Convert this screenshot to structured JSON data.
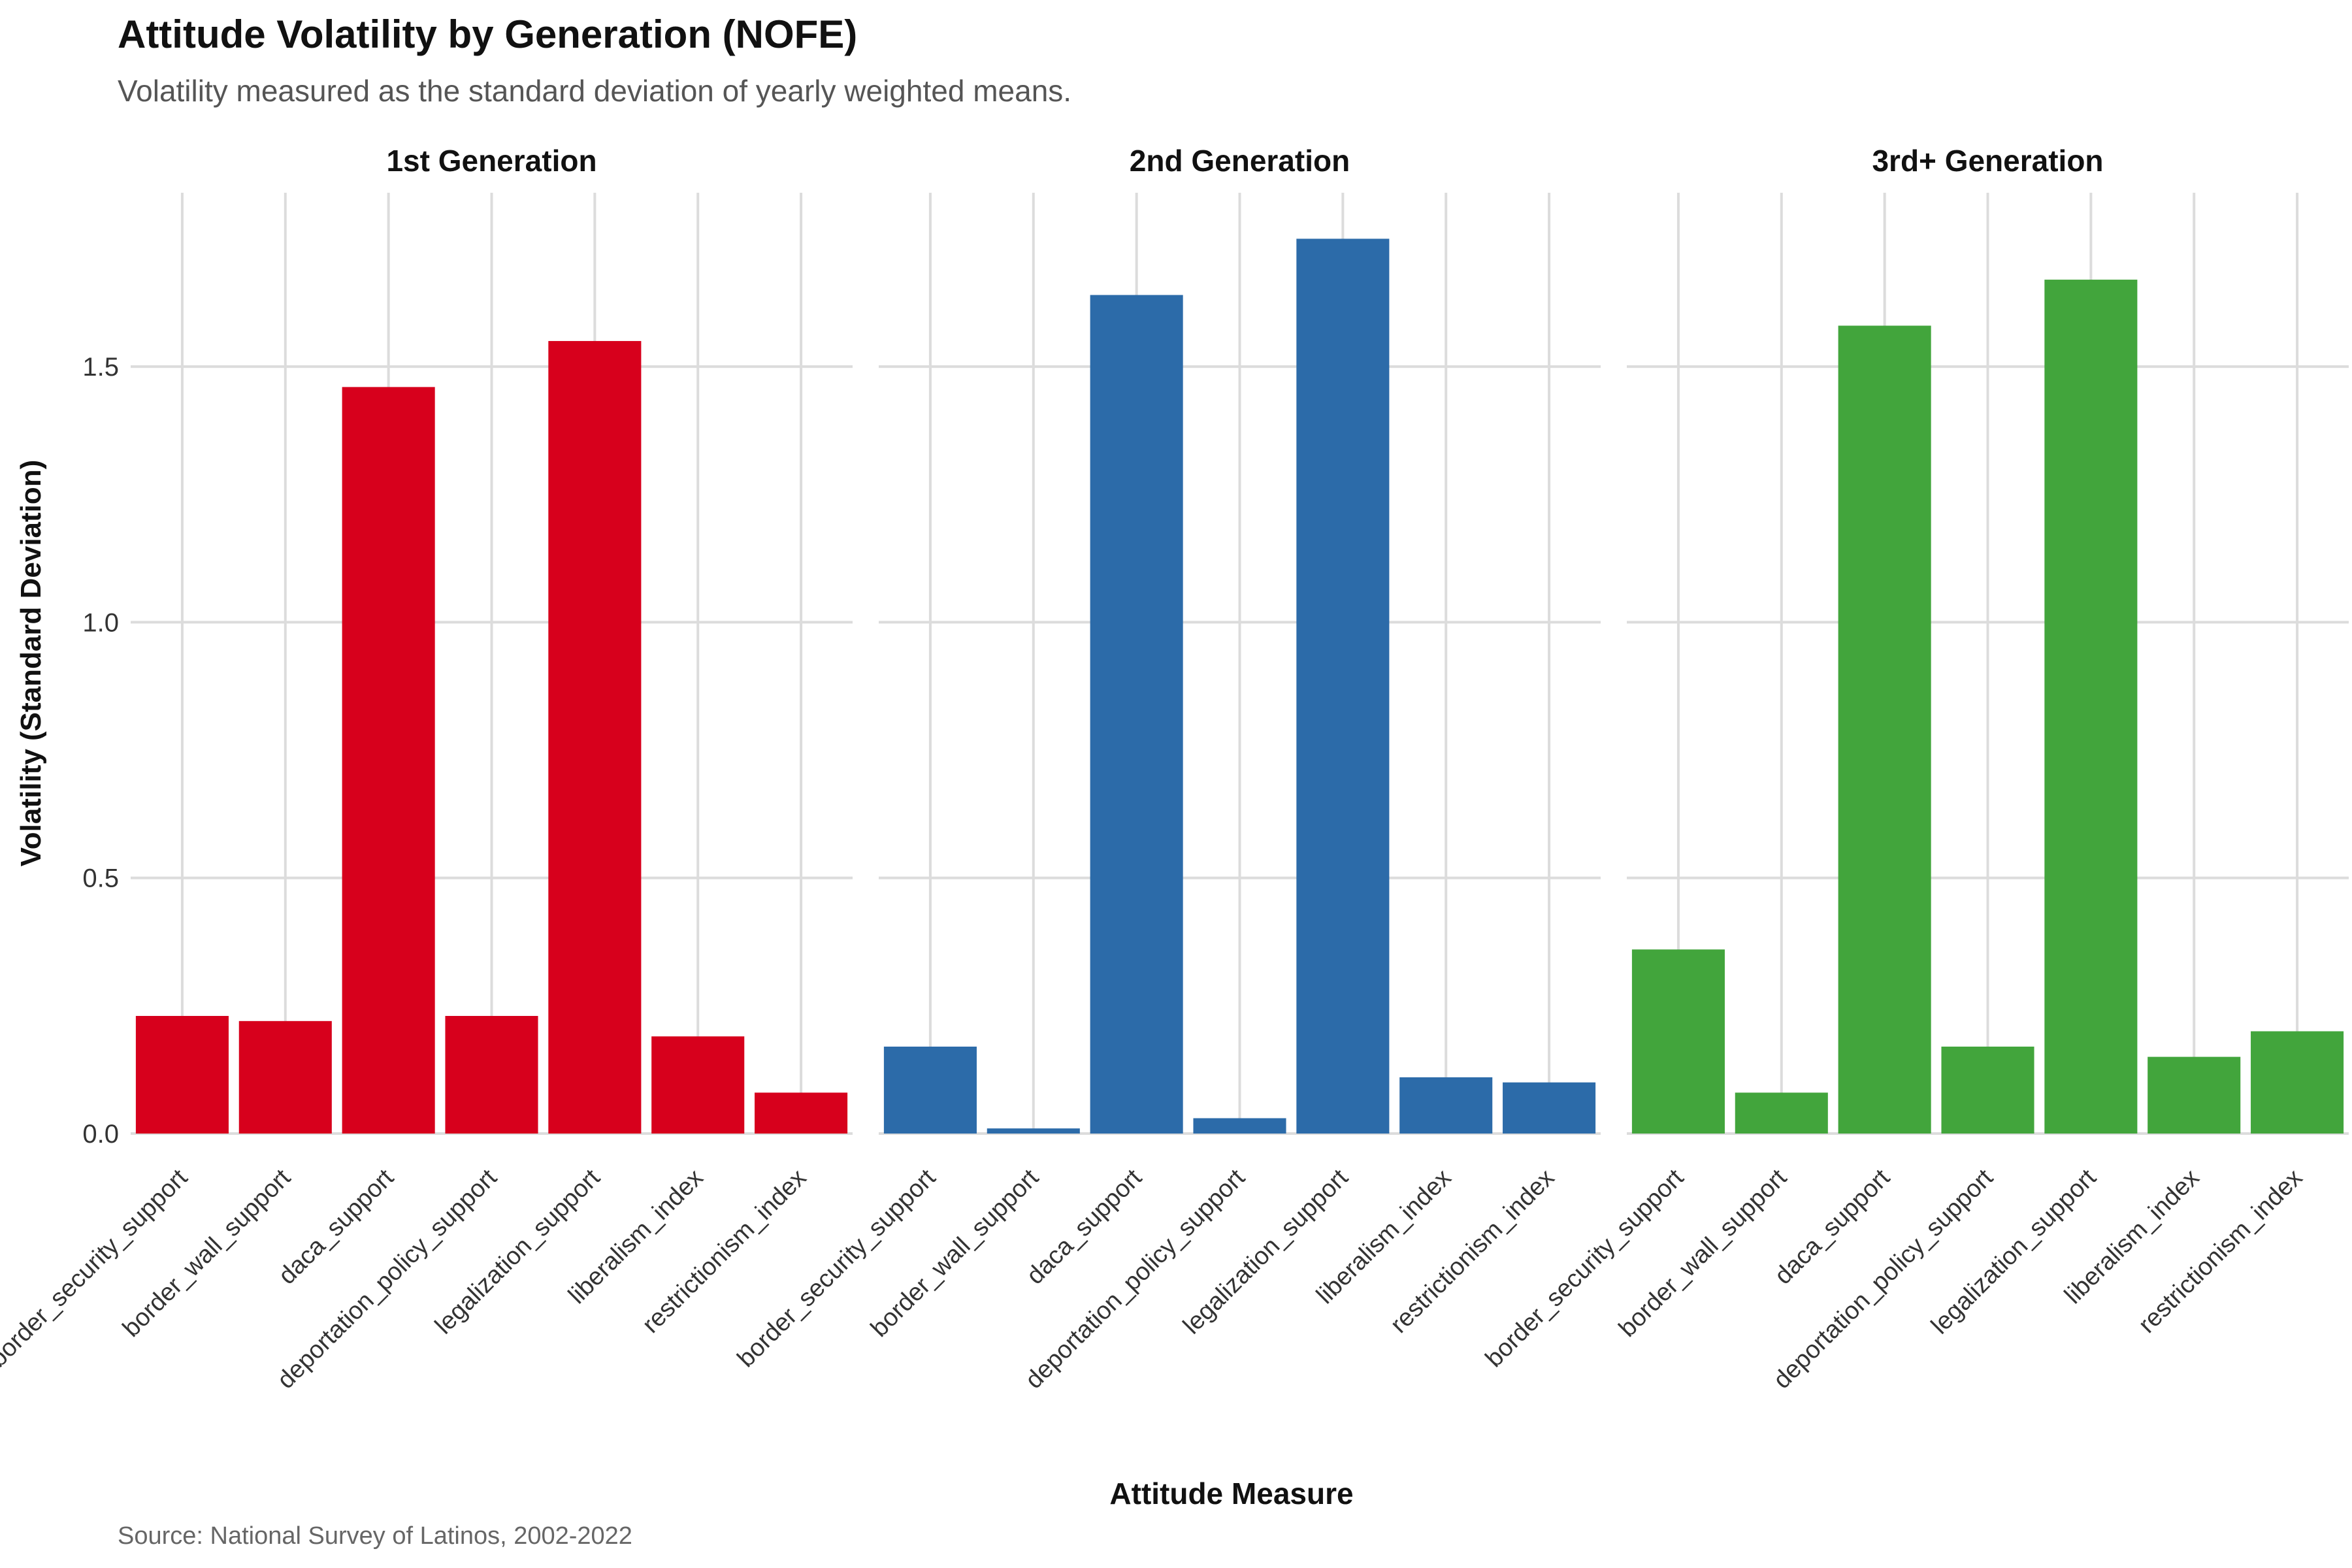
{
  "title": "Attitude Volatility by Generation (NOFE)",
  "subtitle": "Volatility measured as the standard deviation of yearly weighted means.",
  "caption": "Source: National Survey of Latinos, 2002-2022",
  "chart_data": {
    "type": "bar",
    "xlabel": "Attitude Measure",
    "ylabel": "Volatility (Standard Deviation)",
    "ylim": [
      0,
      1.84
    ],
    "yticks": [
      "0.0",
      "0.5",
      "1.0",
      "1.5"
    ],
    "grid": true,
    "categories": [
      "border_security_support",
      "border_wall_support",
      "daca_support",
      "deportation_policy_support",
      "legalization_support",
      "liberalism_index",
      "restrictionism_index"
    ],
    "facets": [
      {
        "name": "1st Generation",
        "color": "#D7001C",
        "values": [
          0.23,
          0.22,
          1.46,
          0.23,
          1.55,
          0.19,
          0.08
        ]
      },
      {
        "name": "2nd Generation",
        "color": "#2C6BA9",
        "values": [
          0.17,
          0.01,
          1.64,
          0.03,
          1.75,
          0.11,
          0.1
        ]
      },
      {
        "name": "3rd+ Generation",
        "color": "#42A53C",
        "values": [
          0.36,
          0.08,
          1.58,
          0.17,
          1.67,
          0.15,
          0.2
        ]
      }
    ]
  }
}
